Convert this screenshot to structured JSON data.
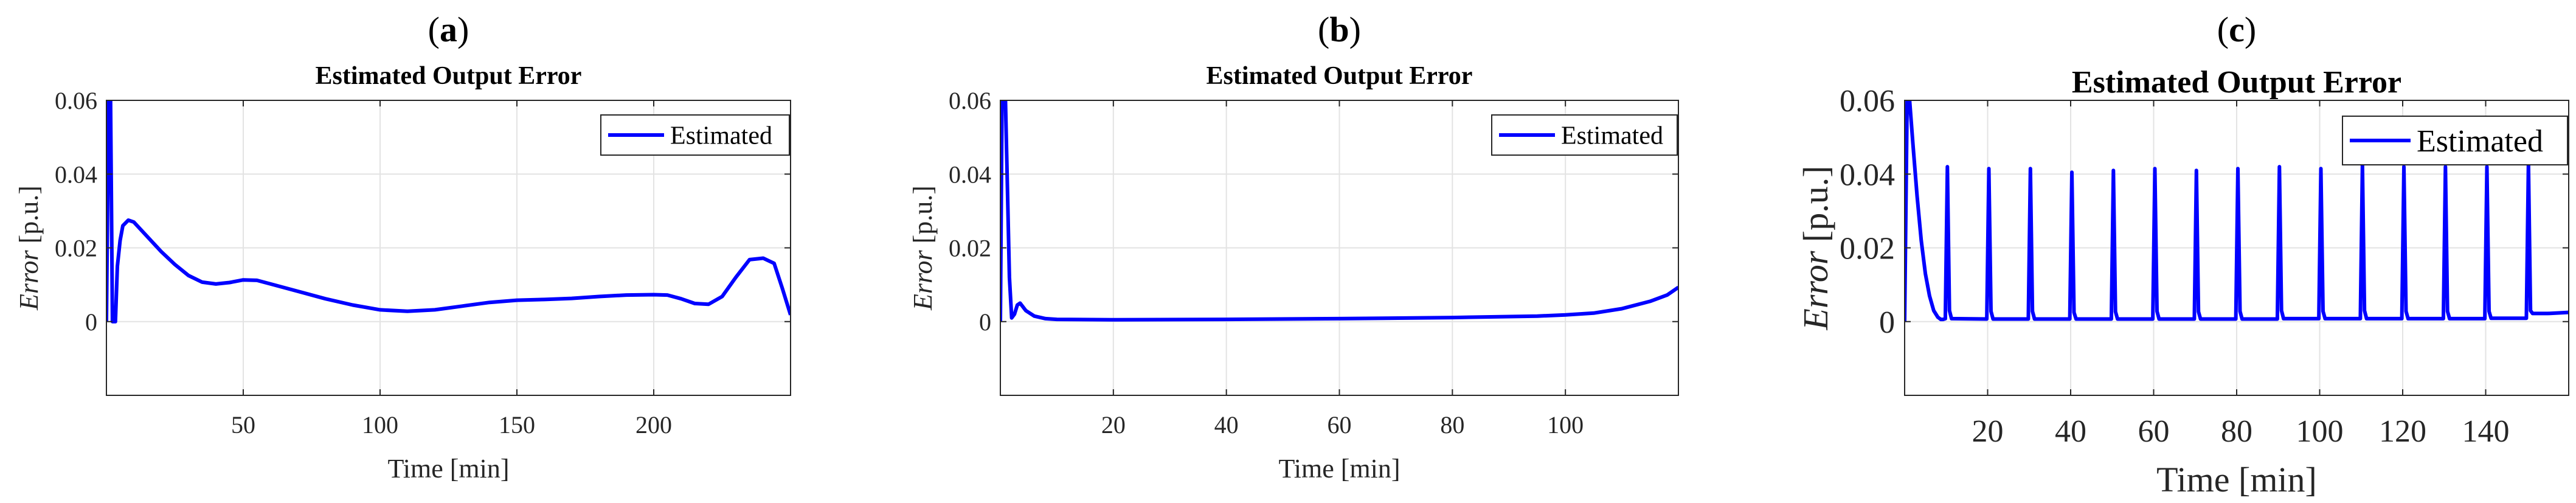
{
  "chart_data": [
    {
      "type": "line",
      "panel_label": "a",
      "title": "Estimated Output Error",
      "xlabel": "Time [min]",
      "ylabel_italic": "Error",
      "ylabel_unit": "[p.u.]",
      "xlim": [
        0,
        250
      ],
      "ylim": [
        -0.02,
        0.06
      ],
      "xticks": [
        50,
        100,
        150,
        200
      ],
      "yticks": [
        0,
        0.02,
        0.04,
        0.06
      ],
      "ytick_labels": [
        "0",
        "0.02",
        "0.04",
        "0.06"
      ],
      "grid": true,
      "legend_position": "top-right",
      "color": "#0000ff",
      "series": [
        {
          "name": "Estimated",
          "x": [
            0,
            0.8,
            1.5,
            2.2,
            2.8,
            3.3,
            4,
            5,
            6,
            8,
            10,
            15,
            20,
            25,
            30,
            35,
            40,
            45,
            50,
            55,
            60,
            70,
            80,
            90,
            100,
            110,
            120,
            130,
            140,
            150,
            160,
            170,
            180,
            190,
            200,
            205,
            210,
            215,
            220,
            225,
            230,
            235,
            240,
            244,
            247,
            250
          ],
          "y": [
            0.0,
            0.06,
            0.06,
            0.0,
            0.0,
            0.0,
            0.015,
            0.022,
            0.026,
            0.0275,
            0.027,
            0.023,
            0.019,
            0.0155,
            0.0125,
            0.0107,
            0.0102,
            0.0106,
            0.0113,
            0.0112,
            0.0102,
            0.0082,
            0.0062,
            0.0045,
            0.0032,
            0.0028,
            0.0032,
            0.0042,
            0.0052,
            0.0058,
            0.006,
            0.0063,
            0.0068,
            0.0072,
            0.0073,
            0.0072,
            0.0062,
            0.0049,
            0.0047,
            0.0068,
            0.012,
            0.0168,
            0.0172,
            0.0158,
            0.009,
            0.0018
          ]
        }
      ]
    },
    {
      "type": "line",
      "panel_label": "b",
      "title": "Estimated Output Error",
      "xlabel": "Time [min]",
      "ylabel_italic": "Error",
      "ylabel_unit": "[p.u.]",
      "xlim": [
        0,
        120
      ],
      "ylim": [
        -0.02,
        0.06
      ],
      "xticks": [
        20,
        40,
        60,
        80,
        100
      ],
      "yticks": [
        0,
        0.02,
        0.04,
        0.06
      ],
      "ytick_labels": [
        "0",
        "0.02",
        "0.04",
        "0.06"
      ],
      "grid": true,
      "legend_position": "top-right",
      "color": "#0000ff",
      "series": [
        {
          "name": "Estimated",
          "x": [
            0,
            0.3,
            0.9,
            1.6,
            2.0,
            2.5,
            3,
            3.5,
            4.5,
            6,
            8,
            10,
            20,
            40,
            60,
            80,
            95,
            100,
            105,
            110,
            115,
            118,
            120
          ],
          "y": [
            0.0,
            0.06,
            0.06,
            0.012,
            0.001,
            0.002,
            0.0045,
            0.005,
            0.003,
            0.0015,
            0.0008,
            0.0006,
            0.0005,
            0.0006,
            0.0008,
            0.0011,
            0.0015,
            0.0018,
            0.0023,
            0.0035,
            0.0055,
            0.0072,
            0.0093
          ]
        }
      ]
    },
    {
      "type": "line",
      "panel_label": "c",
      "title": "Estimated Output Error",
      "xlabel": "Time [min]",
      "ylabel_italic": "Error",
      "ylabel_unit": "[p.u.]",
      "xlim": [
        0,
        160
      ],
      "ylim": [
        -0.02,
        0.06
      ],
      "xticks": [
        20,
        40,
        60,
        80,
        100,
        120,
        140
      ],
      "yticks": [
        0,
        0.02,
        0.04,
        0.06
      ],
      "ytick_labels": [
        "0",
        "0.02",
        "0.04",
        "0.06"
      ],
      "grid": true,
      "legend_position": "top-right",
      "color": "#0000ff",
      "series": [
        {
          "name": "Estimated",
          "x": [
            0,
            0.6,
            1.2,
            2,
            3,
            4,
            5,
            6,
            7,
            8,
            8.7,
            9.3,
            9.8,
            10.3,
            10.8,
            11.3,
            19.8,
            20.3,
            20.8,
            21.3,
            29.8,
            30.3,
            30.8,
            31.3,
            39.8,
            40.3,
            40.8,
            41.3,
            49.8,
            50.3,
            50.8,
            51.3,
            59.8,
            60.3,
            60.8,
            61.3,
            69.8,
            70.3,
            70.8,
            71.3,
            79.8,
            80.3,
            80.8,
            81.3,
            89.8,
            90.3,
            90.8,
            91.3,
            99.8,
            100.3,
            100.8,
            101.3,
            109.8,
            110.3,
            110.8,
            111.3,
            119.8,
            120.3,
            120.8,
            121.3,
            129.8,
            130.3,
            130.8,
            131.3,
            139.8,
            140.3,
            140.8,
            141.3,
            149.8,
            150.3,
            150.8,
            151.3,
            155,
            160
          ],
          "y": [
            0.0,
            0.06,
            0.06,
            0.048,
            0.034,
            0.022,
            0.013,
            0.007,
            0.003,
            0.0012,
            0.0006,
            0.0006,
            0.0008,
            0.042,
            0.003,
            0.0008,
            0.0007,
            0.0415,
            0.0028,
            0.0007,
            0.0007,
            0.0415,
            0.0028,
            0.0007,
            0.0007,
            0.0405,
            0.0025,
            0.0007,
            0.0007,
            0.041,
            0.0027,
            0.0007,
            0.0007,
            0.0415,
            0.0028,
            0.0007,
            0.0007,
            0.041,
            0.0027,
            0.0007,
            0.0007,
            0.0415,
            0.0028,
            0.0007,
            0.0007,
            0.042,
            0.003,
            0.0008,
            0.0008,
            0.0415,
            0.0028,
            0.0008,
            0.0008,
            0.0425,
            0.003,
            0.0008,
            0.0008,
            0.042,
            0.0028,
            0.0008,
            0.0008,
            0.042,
            0.0028,
            0.0008,
            0.0008,
            0.042,
            0.0028,
            0.0009,
            0.0009,
            0.043,
            0.003,
            0.0022,
            0.0022,
            0.0025
          ]
        }
      ]
    }
  ]
}
